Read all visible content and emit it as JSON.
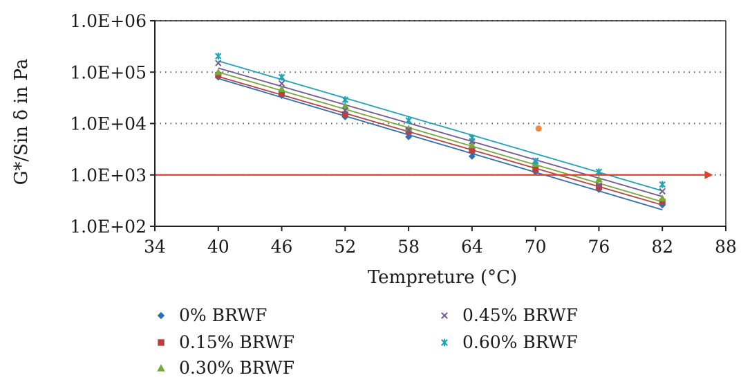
{
  "chart_data": {
    "type": "scatter",
    "title": "",
    "xlabel": "Tempreture (°C)",
    "ylabel": "G*/Sin δ in Pa",
    "xlim": [
      34,
      88
    ],
    "ylim": [
      100,
      1000000
    ],
    "y_scale": "log",
    "x_ticks": [
      34,
      40,
      46,
      52,
      58,
      64,
      70,
      76,
      82,
      88
    ],
    "x_tick_labels": [
      "34",
      "40",
      "46",
      "52",
      "58",
      "64",
      "70",
      "76",
      "82",
      "88"
    ],
    "y_ticks": [
      100,
      1000,
      10000,
      100000,
      1000000
    ],
    "y_tick_labels": [
      "1.0E+02",
      "1.0E+03",
      "1.0E+04",
      "1.0E+05",
      "1.0E+06"
    ],
    "grid": "horizontal dotted",
    "legend_position": "bottom",
    "x": [
      40,
      46,
      52,
      58,
      64,
      70,
      76,
      82
    ],
    "series": [
      {
        "name": "0% BRWF",
        "marker": "diamond",
        "color": "#2f6db5",
        "values": [
          80000,
          35000,
          13500,
          5500,
          2300,
          1150,
          520,
          260
        ],
        "trend": [
          75000,
          210
        ]
      },
      {
        "name": "0.15% BRWF",
        "marker": "square",
        "color": "#b8403e",
        "values": [
          88000,
          38000,
          15000,
          7000,
          3000,
          1300,
          580,
          300
        ],
        "trend": [
          82000,
          260
        ]
      },
      {
        "name": "0.30% BRWF",
        "marker": "triangle",
        "color": "#77a83a",
        "values": [
          100000,
          47000,
          22000,
          8000,
          3800,
          1650,
          820,
          350
        ],
        "trend": [
          100000,
          300
        ]
      },
      {
        "name": "0.45% BRWF",
        "marker": "x",
        "color": "#6e5a93",
        "values": [
          150000,
          60000,
          18000,
          7500,
          4500,
          1900,
          620,
          480
        ],
        "trend": [
          120000,
          380
        ]
      },
      {
        "name": "0.60% BRWF",
        "marker": "star",
        "color": "#1fa3b6",
        "values": [
          205000,
          80000,
          29000,
          11500,
          5300,
          1850,
          1150,
          650
        ],
        "trend": [
          165000,
          490
        ]
      }
    ],
    "reference_line": {
      "y": 1000,
      "x_start": 34,
      "x_end": 86,
      "color": "#e0412d"
    },
    "outlier_point": {
      "x": 70.3,
      "y": 8000,
      "color": "#f08a3c"
    }
  }
}
